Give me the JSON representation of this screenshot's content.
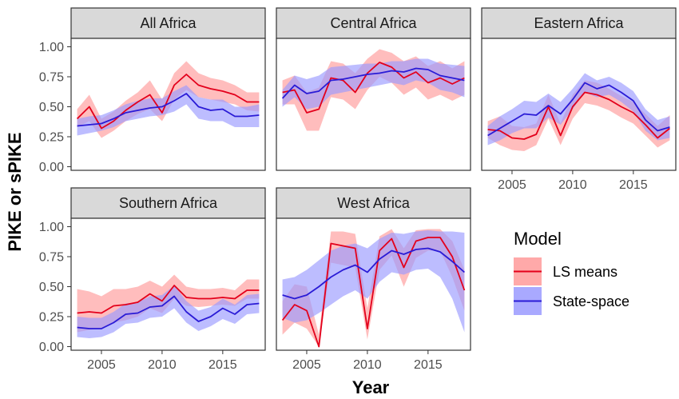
{
  "chart_data": {
    "type": "line",
    "xlabel": "Year",
    "ylabel": "PIKE or sPIKE",
    "xlim": [
      2002.5,
      2018.5
    ],
    "ylim": [
      -0.03,
      1.07
    ],
    "x_ticks": [
      2005,
      2010,
      2015
    ],
    "x_tick_labels": [
      "2005",
      "2010",
      "2015"
    ],
    "y_ticks": [
      0,
      0.25,
      0.5,
      0.75,
      1.0
    ],
    "y_tick_labels": [
      "0.00",
      "0.25",
      "0.50",
      "0.75",
      "1.00"
    ],
    "grid": false,
    "legend": {
      "title": "Model",
      "position": "right",
      "entries": [
        {
          "label": "LS means",
          "line_color": "#e3001b",
          "fill_color": "#ff9a9a"
        },
        {
          "label": "State-space",
          "line_color": "#2a1bd6",
          "fill_color": "#9a9aff"
        }
      ]
    },
    "x": [
      2003,
      2004,
      2005,
      2006,
      2007,
      2008,
      2009,
      2010,
      2011,
      2012,
      2013,
      2014,
      2015,
      2016,
      2017,
      2018
    ],
    "panels": [
      {
        "title": "All Africa",
        "series": [
          {
            "name": "LS means",
            "values": [
              0.4,
              0.5,
              0.32,
              0.38,
              0.47,
              0.54,
              0.6,
              0.45,
              0.68,
              0.77,
              0.68,
              0.65,
              0.63,
              0.6,
              0.54,
              0.54
            ],
            "lower": [
              0.33,
              0.38,
              0.24,
              0.3,
              0.38,
              0.44,
              0.48,
              0.38,
              0.56,
              0.64,
              0.58,
              0.56,
              0.54,
              0.52,
              0.47,
              0.46
            ],
            "upper": [
              0.48,
              0.6,
              0.4,
              0.46,
              0.55,
              0.62,
              0.72,
              0.56,
              0.78,
              0.88,
              0.78,
              0.74,
              0.72,
              0.68,
              0.62,
              0.62
            ]
          },
          {
            "name": "State-space",
            "values": [
              0.34,
              0.35,
              0.36,
              0.4,
              0.45,
              0.47,
              0.49,
              0.5,
              0.55,
              0.61,
              0.5,
              0.47,
              0.48,
              0.42,
              0.42,
              0.43
            ],
            "lower": [
              0.26,
              0.28,
              0.3,
              0.33,
              0.38,
              0.4,
              0.42,
              0.43,
              0.46,
              0.52,
              0.4,
              0.38,
              0.38,
              0.33,
              0.33,
              0.33
            ],
            "upper": [
              0.4,
              0.42,
              0.43,
              0.47,
              0.52,
              0.55,
              0.57,
              0.57,
              0.63,
              0.68,
              0.58,
              0.56,
              0.56,
              0.5,
              0.5,
              0.52
            ]
          }
        ]
      },
      {
        "title": "Central Africa",
        "series": [
          {
            "name": "LS means",
            "values": [
              0.62,
              0.64,
              0.45,
              0.48,
              0.74,
              0.72,
              0.62,
              0.78,
              0.87,
              0.83,
              0.74,
              0.79,
              0.7,
              0.74,
              0.69,
              0.74
            ],
            "lower": [
              0.52,
              0.52,
              0.3,
              0.3,
              0.58,
              0.56,
              0.48,
              0.64,
              0.75,
              0.7,
              0.6,
              0.66,
              0.56,
              0.6,
              0.55,
              0.6
            ],
            "upper": [
              0.72,
              0.76,
              0.62,
              0.66,
              0.88,
              0.86,
              0.78,
              0.9,
              0.98,
              0.95,
              0.88,
              0.92,
              0.84,
              0.88,
              0.82,
              0.88
            ]
          },
          {
            "name": "State-space",
            "values": [
              0.57,
              0.68,
              0.61,
              0.63,
              0.72,
              0.73,
              0.75,
              0.77,
              0.78,
              0.8,
              0.79,
              0.82,
              0.81,
              0.76,
              0.74,
              0.72
            ],
            "lower": [
              0.5,
              0.58,
              0.48,
              0.5,
              0.6,
              0.62,
              0.64,
              0.66,
              0.68,
              0.7,
              0.68,
              0.72,
              0.7,
              0.64,
              0.62,
              0.58
            ],
            "upper": [
              0.64,
              0.76,
              0.73,
              0.76,
              0.83,
              0.84,
              0.85,
              0.86,
              0.86,
              0.88,
              0.88,
              0.9,
              0.9,
              0.86,
              0.85,
              0.84
            ]
          }
        ]
      },
      {
        "title": "Eastern Africa",
        "series": [
          {
            "name": "LS means",
            "values": [
              0.31,
              0.3,
              0.24,
              0.23,
              0.27,
              0.5,
              0.26,
              0.5,
              0.62,
              0.6,
              0.56,
              0.5,
              0.45,
              0.35,
              0.24,
              0.32
            ],
            "lower": [
              0.24,
              0.18,
              0.14,
              0.13,
              0.18,
              0.4,
              0.18,
              0.4,
              0.53,
              0.51,
              0.47,
              0.41,
              0.36,
              0.26,
              0.16,
              0.22
            ],
            "upper": [
              0.38,
              0.42,
              0.34,
              0.33,
              0.36,
              0.6,
              0.36,
              0.6,
              0.72,
              0.7,
              0.65,
              0.59,
              0.54,
              0.44,
              0.34,
              0.43
            ]
          },
          {
            "name": "State-space",
            "values": [
              0.26,
              0.32,
              0.38,
              0.44,
              0.43,
              0.51,
              0.44,
              0.56,
              0.7,
              0.65,
              0.68,
              0.62,
              0.55,
              0.39,
              0.3,
              0.33
            ],
            "lower": [
              0.18,
              0.22,
              0.28,
              0.32,
              0.32,
              0.41,
              0.35,
              0.48,
              0.62,
              0.58,
              0.6,
              0.54,
              0.46,
              0.3,
              0.22,
              0.24
            ],
            "upper": [
              0.34,
              0.42,
              0.48,
              0.55,
              0.54,
              0.61,
              0.54,
              0.65,
              0.78,
              0.72,
              0.75,
              0.7,
              0.63,
              0.48,
              0.39,
              0.42
            ]
          }
        ]
      },
      {
        "title": "Southern Africa",
        "series": [
          {
            "name": "LS means",
            "values": [
              0.28,
              0.29,
              0.28,
              0.34,
              0.35,
              0.37,
              0.44,
              0.38,
              0.51,
              0.41,
              0.4,
              0.4,
              0.41,
              0.4,
              0.47,
              0.47
            ],
            "lower": [
              0.12,
              0.14,
              0.15,
              0.2,
              0.22,
              0.25,
              0.32,
              0.28,
              0.4,
              0.34,
              0.33,
              0.34,
              0.35,
              0.34,
              0.4,
              0.4
            ],
            "upper": [
              0.48,
              0.46,
              0.42,
              0.48,
              0.48,
              0.5,
              0.55,
              0.5,
              0.6,
              0.5,
              0.48,
              0.48,
              0.49,
              0.47,
              0.56,
              0.56
            ]
          },
          {
            "name": "State-space",
            "values": [
              0.16,
              0.15,
              0.15,
              0.2,
              0.27,
              0.28,
              0.33,
              0.34,
              0.42,
              0.29,
              0.21,
              0.25,
              0.32,
              0.27,
              0.35,
              0.36
            ],
            "lower": [
              0.08,
              0.07,
              0.08,
              0.12,
              0.19,
              0.2,
              0.24,
              0.25,
              0.32,
              0.2,
              0.13,
              0.17,
              0.23,
              0.19,
              0.27,
              0.28
            ],
            "upper": [
              0.25,
              0.24,
              0.24,
              0.29,
              0.36,
              0.37,
              0.42,
              0.43,
              0.51,
              0.38,
              0.3,
              0.33,
              0.4,
              0.35,
              0.43,
              0.44
            ]
          }
        ]
      },
      {
        "title": "West Africa",
        "series": [
          {
            "name": "LS means",
            "values": [
              0.22,
              0.35,
              0.3,
              0.0,
              0.86,
              0.84,
              0.82,
              0.15,
              0.8,
              0.9,
              0.66,
              0.88,
              0.91,
              0.91,
              0.75,
              0.47
            ],
            "lower": [
              0.1,
              0.2,
              0.15,
              0.0,
              0.7,
              0.68,
              0.66,
              0.06,
              0.64,
              0.76,
              0.5,
              0.74,
              0.8,
              0.8,
              0.58,
              0.3
            ],
            "upper": [
              0.38,
              0.52,
              0.5,
              0.1,
              0.96,
              0.96,
              0.94,
              0.32,
              0.92,
              0.98,
              0.82,
              0.97,
              0.98,
              0.98,
              0.88,
              0.64
            ]
          },
          {
            "name": "State-space",
            "values": [
              0.43,
              0.4,
              0.43,
              0.5,
              0.58,
              0.64,
              0.68,
              0.62,
              0.73,
              0.8,
              0.77,
              0.81,
              0.82,
              0.79,
              0.71,
              0.62
            ],
            "lower": [
              0.24,
              0.2,
              0.22,
              0.28,
              0.35,
              0.42,
              0.47,
              0.4,
              0.54,
              0.62,
              0.6,
              0.64,
              0.65,
              0.58,
              0.4,
              0.12
            ],
            "upper": [
              0.56,
              0.58,
              0.64,
              0.72,
              0.8,
              0.84,
              0.86,
              0.82,
              0.9,
              0.95,
              0.94,
              0.96,
              0.97,
              0.96,
              0.96,
              0.95
            ]
          }
        ]
      }
    ]
  }
}
